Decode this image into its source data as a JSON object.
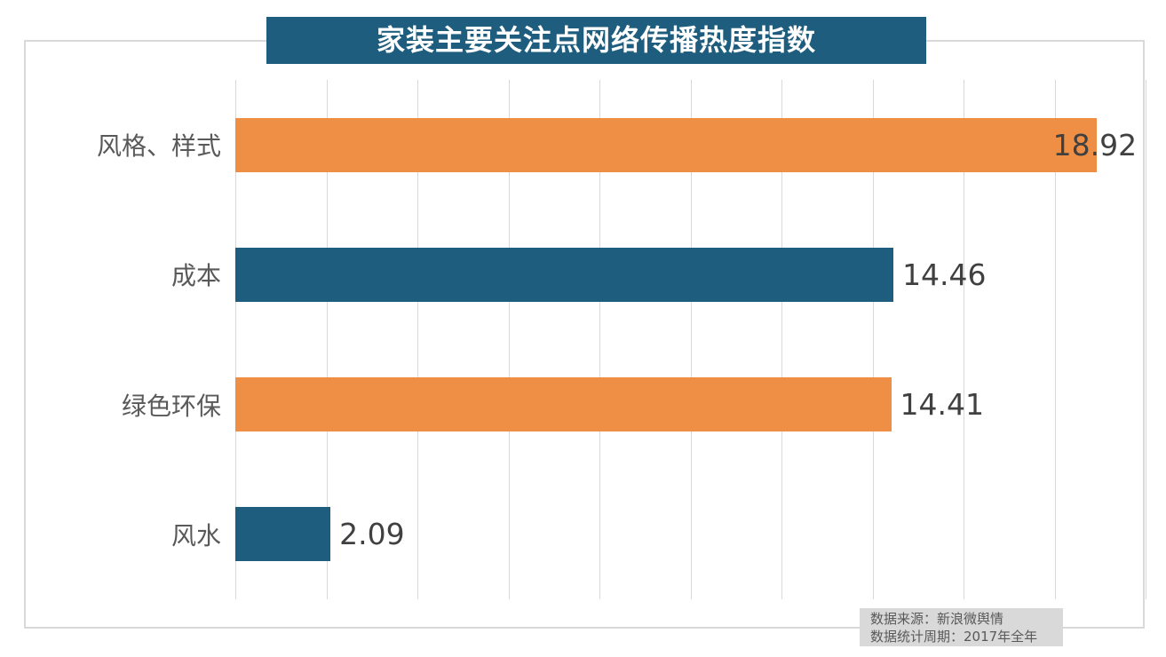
{
  "title": "家装主要关注点网络传播热度指数",
  "chart_data": {
    "type": "bar",
    "orientation": "horizontal",
    "title": "家装主要关注点网络传播热度指数",
    "categories": [
      "风格、样式",
      "成本",
      "绿色环保",
      "风水"
    ],
    "values": [
      18.92,
      14.46,
      14.41,
      2.09
    ],
    "value_labels": [
      "18.92",
      "14.46",
      "14.41",
      "2.09"
    ],
    "bar_colors": [
      "#ef8f46",
      "#1f5d7e",
      "#ef8f46",
      "#1f5d7e"
    ],
    "xlim": [
      0,
      20
    ],
    "tick_step": 2,
    "grid": "vertical-only",
    "legend": "none",
    "xlabel": "",
    "ylabel": ""
  },
  "colors": {
    "accent_teal": "#1f5d7e",
    "accent_orange": "#ef8f46",
    "grid": "#d9d9d9",
    "category_text": "#595959",
    "value_text": "#404040",
    "title_text": "#ffffff",
    "source_bg": "#d9d9d9",
    "source_text": "#595959"
  },
  "source": {
    "line1": "数据来源：新浪微舆情",
    "line2": "数据统计周期：2017年全年"
  }
}
